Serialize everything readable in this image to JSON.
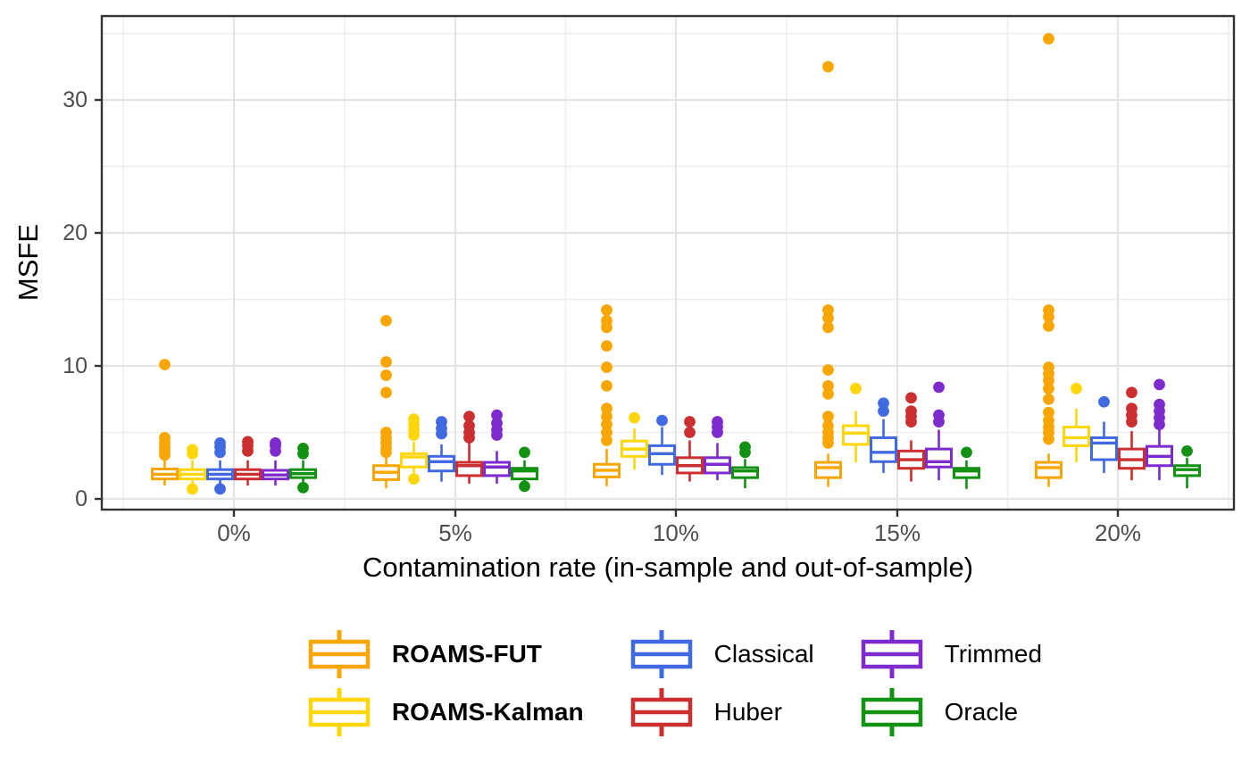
{
  "figure": {
    "background": "#FFFFFF",
    "panel_border_color": "#333333",
    "grid_major_color": "#E4E4E4",
    "grid_minor_color": "#EFEFEF",
    "tick_color": "#333333",
    "axis_text_color": "#4D4D4D"
  },
  "chart_data": {
    "type": "boxplot",
    "title": "",
    "xlabel": "Contamination rate (in-sample and out-of-sample)",
    "ylabel": "MSFE",
    "categories": [
      "0%",
      "5%",
      "10%",
      "15%",
      "20%"
    ],
    "y_ticks": [
      0,
      10,
      20,
      30
    ],
    "y_minor_ticks": [
      5,
      15,
      25,
      35
    ],
    "ylim": [
      -0.8,
      36.5
    ],
    "grid": true,
    "legend_position": "bottom",
    "series": [
      {
        "name": "ROAMS-FUT",
        "color": "#F9A602",
        "bold": true,
        "boxes": [
          {
            "low": 1.0,
            "q1": 1.5,
            "median": 1.85,
            "q3": 2.25,
            "high": 2.9,
            "outliers": [
              3.3,
              3.6,
              3.9,
              4.2,
              4.6,
              10.1
            ]
          },
          {
            "low": 0.8,
            "q1": 1.45,
            "median": 2.0,
            "q3": 2.5,
            "high": 3.2,
            "outliers": [
              3.5,
              3.8,
              4.2,
              4.6,
              5.0,
              8.0,
              9.3,
              10.3,
              13.4
            ]
          },
          {
            "low": 0.95,
            "q1": 1.65,
            "median": 2.15,
            "q3": 2.6,
            "high": 3.75,
            "outliers": [
              4.4,
              5.0,
              5.6,
              6.2,
              6.8,
              8.5,
              9.9,
              11.5,
              12.9,
              13.4,
              14.2
            ]
          },
          {
            "low": 0.9,
            "q1": 1.6,
            "median": 2.35,
            "q3": 2.75,
            "high": 3.4,
            "outliers": [
              4.2,
              4.6,
              5.0,
              5.5,
              6.2,
              7.9,
              8.5,
              9.7,
              12.9,
              13.6,
              14.2,
              32.5
            ]
          },
          {
            "low": 0.9,
            "q1": 1.6,
            "median": 2.35,
            "q3": 2.75,
            "high": 3.4,
            "outliers": [
              4.5,
              5.0,
              5.4,
              5.9,
              6.5,
              7.5,
              8.3,
              8.9,
              9.4,
              9.9,
              13.0,
              13.7,
              14.2,
              34.6
            ]
          }
        ]
      },
      {
        "name": "ROAMS-Kalman",
        "color": "#FFD60A",
        "bold": true,
        "boxes": [
          {
            "low": 1.0,
            "q1": 1.5,
            "median": 1.85,
            "q3": 2.2,
            "high": 2.9,
            "outliers": [
              3.4,
              3.7,
              0.75
            ]
          },
          {
            "low": 1.95,
            "q1": 2.4,
            "median": 3.15,
            "q3": 3.4,
            "high": 4.3,
            "outliers": [
              4.8,
              5.2,
              5.6,
              6.0,
              1.5
            ]
          },
          {
            "low": 2.2,
            "q1": 3.2,
            "median": 3.75,
            "q3": 4.35,
            "high": 5.3,
            "outliers": [
              6.1
            ]
          },
          {
            "low": 2.75,
            "q1": 4.1,
            "median": 4.95,
            "q3": 5.5,
            "high": 6.6,
            "outliers": [
              8.3
            ]
          },
          {
            "low": 2.75,
            "q1": 4.0,
            "median": 4.6,
            "q3": 5.4,
            "high": 6.8,
            "outliers": [
              8.3
            ]
          }
        ]
      },
      {
        "name": "Classical",
        "color": "#4169E1",
        "bold": false,
        "boxes": [
          {
            "low": 1.0,
            "q1": 1.5,
            "median": 1.85,
            "q3": 2.2,
            "high": 2.9,
            "outliers": [
              3.5,
              3.9,
              4.2,
              0.75
            ]
          },
          {
            "low": 1.3,
            "q1": 2.1,
            "median": 2.8,
            "q3": 3.2,
            "high": 4.1,
            "outliers": [
              4.9,
              5.3,
              5.8
            ]
          },
          {
            "low": 1.8,
            "q1": 2.6,
            "median": 3.4,
            "q3": 4.0,
            "high": 5.4,
            "outliers": [
              5.9
            ]
          },
          {
            "low": 1.95,
            "q1": 2.8,
            "median": 3.5,
            "q3": 4.6,
            "high": 6.0,
            "outliers": [
              6.6,
              7.2
            ]
          },
          {
            "low": 1.95,
            "q1": 2.95,
            "median": 4.2,
            "q3": 4.6,
            "high": 5.8,
            "outliers": [
              7.3
            ]
          }
        ]
      },
      {
        "name": "Huber",
        "color": "#CC2F2F",
        "bold": false,
        "boxes": [
          {
            "low": 1.0,
            "q1": 1.5,
            "median": 1.85,
            "q3": 2.2,
            "high": 2.9,
            "outliers": [
              3.6,
              4.0,
              4.3
            ]
          },
          {
            "low": 1.15,
            "q1": 1.75,
            "median": 2.5,
            "q3": 2.75,
            "high": 4.2,
            "outliers": [
              4.6,
              5.0,
              5.5,
              6.2
            ]
          },
          {
            "low": 1.3,
            "q1": 1.95,
            "median": 2.5,
            "q3": 3.1,
            "high": 4.4,
            "outliers": [
              5.0,
              5.8
            ]
          },
          {
            "low": 1.3,
            "q1": 2.3,
            "median": 2.95,
            "q3": 3.6,
            "high": 4.4,
            "outliers": [
              5.8,
              6.2,
              6.6,
              7.6
            ]
          },
          {
            "low": 1.4,
            "q1": 2.3,
            "median": 2.95,
            "q3": 3.75,
            "high": 5.1,
            "outliers": [
              5.8,
              6.3,
              6.8,
              8.0
            ]
          }
        ]
      },
      {
        "name": "Trimmed",
        "color": "#7D2BCC",
        "bold": false,
        "boxes": [
          {
            "low": 1.0,
            "q1": 1.5,
            "median": 1.8,
            "q3": 2.15,
            "high": 2.9,
            "outliers": [
              3.6,
              4.0,
              4.2
            ]
          },
          {
            "low": 1.15,
            "q1": 1.75,
            "median": 2.4,
            "q3": 2.75,
            "high": 3.6,
            "outliers": [
              4.8,
              5.2,
              5.7,
              6.3
            ]
          },
          {
            "low": 1.4,
            "q1": 1.95,
            "median": 2.6,
            "q3": 3.1,
            "high": 4.2,
            "outliers": [
              5.0,
              5.4,
              5.8
            ]
          },
          {
            "low": 1.4,
            "q1": 2.4,
            "median": 2.8,
            "q3": 3.75,
            "high": 5.2,
            "outliers": [
              5.8,
              6.3,
              8.4
            ]
          },
          {
            "low": 1.4,
            "q1": 2.5,
            "median": 3.2,
            "q3": 3.95,
            "high": 5.2,
            "outliers": [
              5.6,
              6.1,
              6.6,
              7.1,
              8.6
            ]
          }
        ]
      },
      {
        "name": "Oracle",
        "color": "#129112",
        "bold": false,
        "boxes": [
          {
            "low": 1.0,
            "q1": 1.6,
            "median": 1.9,
            "q3": 2.2,
            "high": 2.9,
            "outliers": [
              3.4,
              3.8,
              0.85
            ]
          },
          {
            "low": 1.1,
            "q1": 1.5,
            "median": 2.1,
            "q3": 2.3,
            "high": 2.9,
            "outliers": [
              3.5,
              0.95
            ]
          },
          {
            "low": 0.8,
            "q1": 1.6,
            "median": 2.1,
            "q3": 2.35,
            "high": 3.0,
            "outliers": [
              3.5,
              3.9
            ]
          },
          {
            "low": 0.75,
            "q1": 1.6,
            "median": 2.1,
            "q3": 2.3,
            "high": 2.9,
            "outliers": [
              3.5
            ]
          },
          {
            "low": 0.8,
            "q1": 1.75,
            "median": 2.2,
            "q3": 2.5,
            "high": 3.1,
            "outliers": [
              3.6
            ]
          }
        ]
      }
    ]
  }
}
